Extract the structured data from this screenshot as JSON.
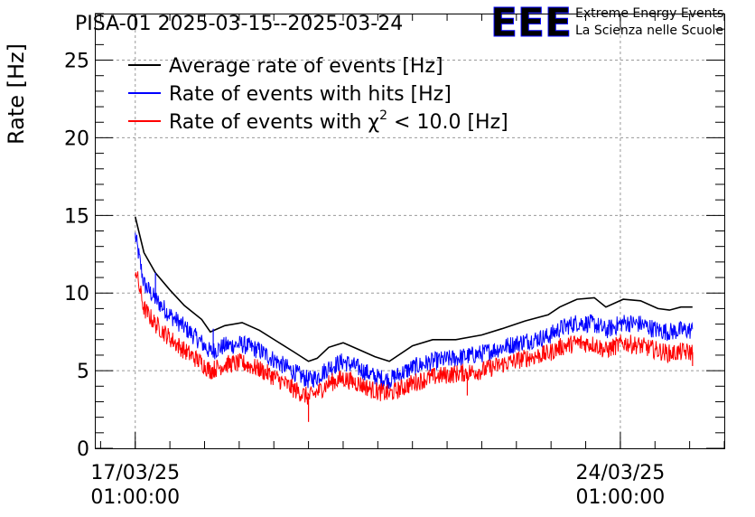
{
  "chart_data": {
    "type": "line",
    "title": "PISA-01 2025-03-15--2025-03-24",
    "ylabel": "Rate [Hz]",
    "xlabel": "",
    "ylim": [
      0,
      28
    ],
    "yticks": [
      0,
      5,
      10,
      15,
      20,
      25
    ],
    "xlim": [
      "2025-03-16T11:00:00",
      "2025-03-25T13:00:00"
    ],
    "xticks": [
      {
        "value": "2025-03-17T01:00:00",
        "date": "17/03/25",
        "time": "01:00:00"
      },
      {
        "value": "2025-03-24T01:00:00",
        "date": "24/03/25",
        "time": "01:00:00"
      }
    ],
    "grid": true,
    "legend_position": "top-left",
    "legend_items": [
      {
        "series": "avg",
        "label": "Average rate of events [Hz]",
        "color": "#000000"
      },
      {
        "series": "hits",
        "label": "Rate of events with hits [Hz]",
        "color": "#0000ff"
      },
      {
        "series": "chi",
        "label_prefix": "Rate of events with ",
        "label_symbol": "χ",
        "label_sup": "2",
        "label_suffix": " < 10.0 [Hz]",
        "color": "#ff0000"
      }
    ],
    "series": [
      {
        "id": "avg",
        "color": "#000000",
        "noise": 0,
        "points": [
          [
            "2025-03-17T01:00:00",
            14.9
          ],
          [
            "2025-03-17T04:00:00",
            12.6
          ],
          [
            "2025-03-17T08:00:00",
            11.3
          ],
          [
            "2025-03-17T13:00:00",
            10.2
          ],
          [
            "2025-03-17T18:00:00",
            9.2
          ],
          [
            "2025-03-18T00:00:00",
            8.3
          ],
          [
            "2025-03-18T03:00:00",
            7.5
          ],
          [
            "2025-03-18T08:00:00",
            7.9
          ],
          [
            "2025-03-18T14:00:00",
            8.1
          ],
          [
            "2025-03-18T20:00:00",
            7.6
          ],
          [
            "2025-03-19T02:00:00",
            6.9
          ],
          [
            "2025-03-19T08:00:00",
            6.2
          ],
          [
            "2025-03-19T13:00:00",
            5.6
          ],
          [
            "2025-03-19T16:00:00",
            5.8
          ],
          [
            "2025-03-19T20:00:00",
            6.5
          ],
          [
            "2025-03-20T01:00:00",
            6.8
          ],
          [
            "2025-03-20T06:00:00",
            6.4
          ],
          [
            "2025-03-20T12:00:00",
            5.9
          ],
          [
            "2025-03-20T17:00:00",
            5.6
          ],
          [
            "2025-03-21T01:00:00",
            6.6
          ],
          [
            "2025-03-21T08:00:00",
            7.0
          ],
          [
            "2025-03-21T16:00:00",
            7.0
          ],
          [
            "2025-03-22T01:00:00",
            7.3
          ],
          [
            "2025-03-22T08:00:00",
            7.7
          ],
          [
            "2025-03-22T16:00:00",
            8.2
          ],
          [
            "2025-03-23T00:00:00",
            8.6
          ],
          [
            "2025-03-23T04:00:00",
            9.1
          ],
          [
            "2025-03-23T10:00:00",
            9.6
          ],
          [
            "2025-03-23T16:00:00",
            9.7
          ],
          [
            "2025-03-23T20:00:00",
            9.1
          ],
          [
            "2025-03-24T02:00:00",
            9.6
          ],
          [
            "2025-03-24T08:00:00",
            9.5
          ],
          [
            "2025-03-24T14:00:00",
            9.0
          ],
          [
            "2025-03-24T18:00:00",
            8.9
          ],
          [
            "2025-03-24T22:00:00",
            9.1
          ],
          [
            "2025-03-25T02:00:00",
            9.1
          ]
        ]
      },
      {
        "id": "hits",
        "color": "#0000ff",
        "noise": 1.2,
        "points": [
          [
            "2025-03-17T01:00:00",
            13.7
          ],
          [
            "2025-03-17T04:00:00",
            10.6
          ],
          [
            "2025-03-17T08:00:00",
            9.6
          ],
          [
            "2025-03-17T13:00:00",
            8.6
          ],
          [
            "2025-03-17T18:00:00",
            7.8
          ],
          [
            "2025-03-18T00:00:00",
            6.8
          ],
          [
            "2025-03-18T03:00:00",
            6.2
          ],
          [
            "2025-03-18T08:00:00",
            6.6
          ],
          [
            "2025-03-18T14:00:00",
            6.7
          ],
          [
            "2025-03-18T20:00:00",
            6.3
          ],
          [
            "2025-03-19T02:00:00",
            5.6
          ],
          [
            "2025-03-19T08:00:00",
            4.9
          ],
          [
            "2025-03-19T13:00:00",
            4.4
          ],
          [
            "2025-03-19T16:00:00",
            4.6
          ],
          [
            "2025-03-19T20:00:00",
            5.2
          ],
          [
            "2025-03-20T01:00:00",
            5.6
          ],
          [
            "2025-03-20T06:00:00",
            5.2
          ],
          [
            "2025-03-20T12:00:00",
            4.6
          ],
          [
            "2025-03-20T17:00:00",
            4.4
          ],
          [
            "2025-03-21T01:00:00",
            5.2
          ],
          [
            "2025-03-21T08:00:00",
            5.6
          ],
          [
            "2025-03-21T16:00:00",
            5.8
          ],
          [
            "2025-03-22T01:00:00",
            6.1
          ],
          [
            "2025-03-22T08:00:00",
            6.5
          ],
          [
            "2025-03-22T16:00:00",
            6.9
          ],
          [
            "2025-03-23T00:00:00",
            7.2
          ],
          [
            "2025-03-23T04:00:00",
            7.7
          ],
          [
            "2025-03-23T10:00:00",
            8.1
          ],
          [
            "2025-03-23T16:00:00",
            8.0
          ],
          [
            "2025-03-23T20:00:00",
            7.6
          ],
          [
            "2025-03-24T02:00:00",
            8.1
          ],
          [
            "2025-03-24T08:00:00",
            8.0
          ],
          [
            "2025-03-24T14:00:00",
            7.6
          ],
          [
            "2025-03-24T18:00:00",
            7.5
          ],
          [
            "2025-03-24T22:00:00",
            7.6
          ],
          [
            "2025-03-25T02:00:00",
            7.6
          ]
        ]
      },
      {
        "id": "chi",
        "color": "#ff0000",
        "noise": 1.2,
        "points": [
          [
            "2025-03-17T01:00:00",
            11.6
          ],
          [
            "2025-03-17T04:00:00",
            9.0
          ],
          [
            "2025-03-17T08:00:00",
            8.0
          ],
          [
            "2025-03-17T13:00:00",
            7.1
          ],
          [
            "2025-03-17T18:00:00",
            6.3
          ],
          [
            "2025-03-18T00:00:00",
            5.5
          ],
          [
            "2025-03-18T03:00:00",
            5.0
          ],
          [
            "2025-03-18T08:00:00",
            5.4
          ],
          [
            "2025-03-18T14:00:00",
            5.5
          ],
          [
            "2025-03-18T20:00:00",
            5.1
          ],
          [
            "2025-03-19T02:00:00",
            4.5
          ],
          [
            "2025-03-19T08:00:00",
            3.8
          ],
          [
            "2025-03-19T13:00:00",
            3.3
          ],
          [
            "2025-03-19T16:00:00",
            3.6
          ],
          [
            "2025-03-19T20:00:00",
            4.2
          ],
          [
            "2025-03-20T01:00:00",
            4.5
          ],
          [
            "2025-03-20T06:00:00",
            4.2
          ],
          [
            "2025-03-20T12:00:00",
            3.7
          ],
          [
            "2025-03-20T17:00:00",
            3.5
          ],
          [
            "2025-03-21T01:00:00",
            4.2
          ],
          [
            "2025-03-21T08:00:00",
            4.6
          ],
          [
            "2025-03-21T16:00:00",
            4.8
          ],
          [
            "2025-03-22T01:00:00",
            5.0
          ],
          [
            "2025-03-22T08:00:00",
            5.4
          ],
          [
            "2025-03-22T16:00:00",
            5.8
          ],
          [
            "2025-03-23T00:00:00",
            6.1
          ],
          [
            "2025-03-23T04:00:00",
            6.5
          ],
          [
            "2025-03-23T10:00:00",
            6.8
          ],
          [
            "2025-03-23T16:00:00",
            6.7
          ],
          [
            "2025-03-23T20:00:00",
            6.3
          ],
          [
            "2025-03-24T02:00:00",
            6.8
          ],
          [
            "2025-03-24T08:00:00",
            6.6
          ],
          [
            "2025-03-24T14:00:00",
            6.3
          ],
          [
            "2025-03-24T18:00:00",
            6.1
          ],
          [
            "2025-03-24T22:00:00",
            6.2
          ],
          [
            "2025-03-25T02:00:00",
            6.2
          ]
        ]
      }
    ],
    "spikes": [
      {
        "series": "hits",
        "x": "2025-03-17T08:00:00",
        "y": 11.3
      },
      {
        "series": "hits",
        "x": "2025-03-18T04:00:00",
        "y": 7.7
      },
      {
        "series": "chi",
        "x": "2025-03-19T13:00:00",
        "y": 1.7
      },
      {
        "series": "chi",
        "x": "2025-03-21T20:00:00",
        "y": 3.4
      },
      {
        "series": "chi",
        "x": "2025-03-25T02:00:00",
        "y": 5.3
      }
    ]
  },
  "logo": {
    "mark": "EEE",
    "line1": "Extreme Energy Events",
    "line2": "La Scienza nelle Scuole",
    "color": "#0000ff"
  }
}
